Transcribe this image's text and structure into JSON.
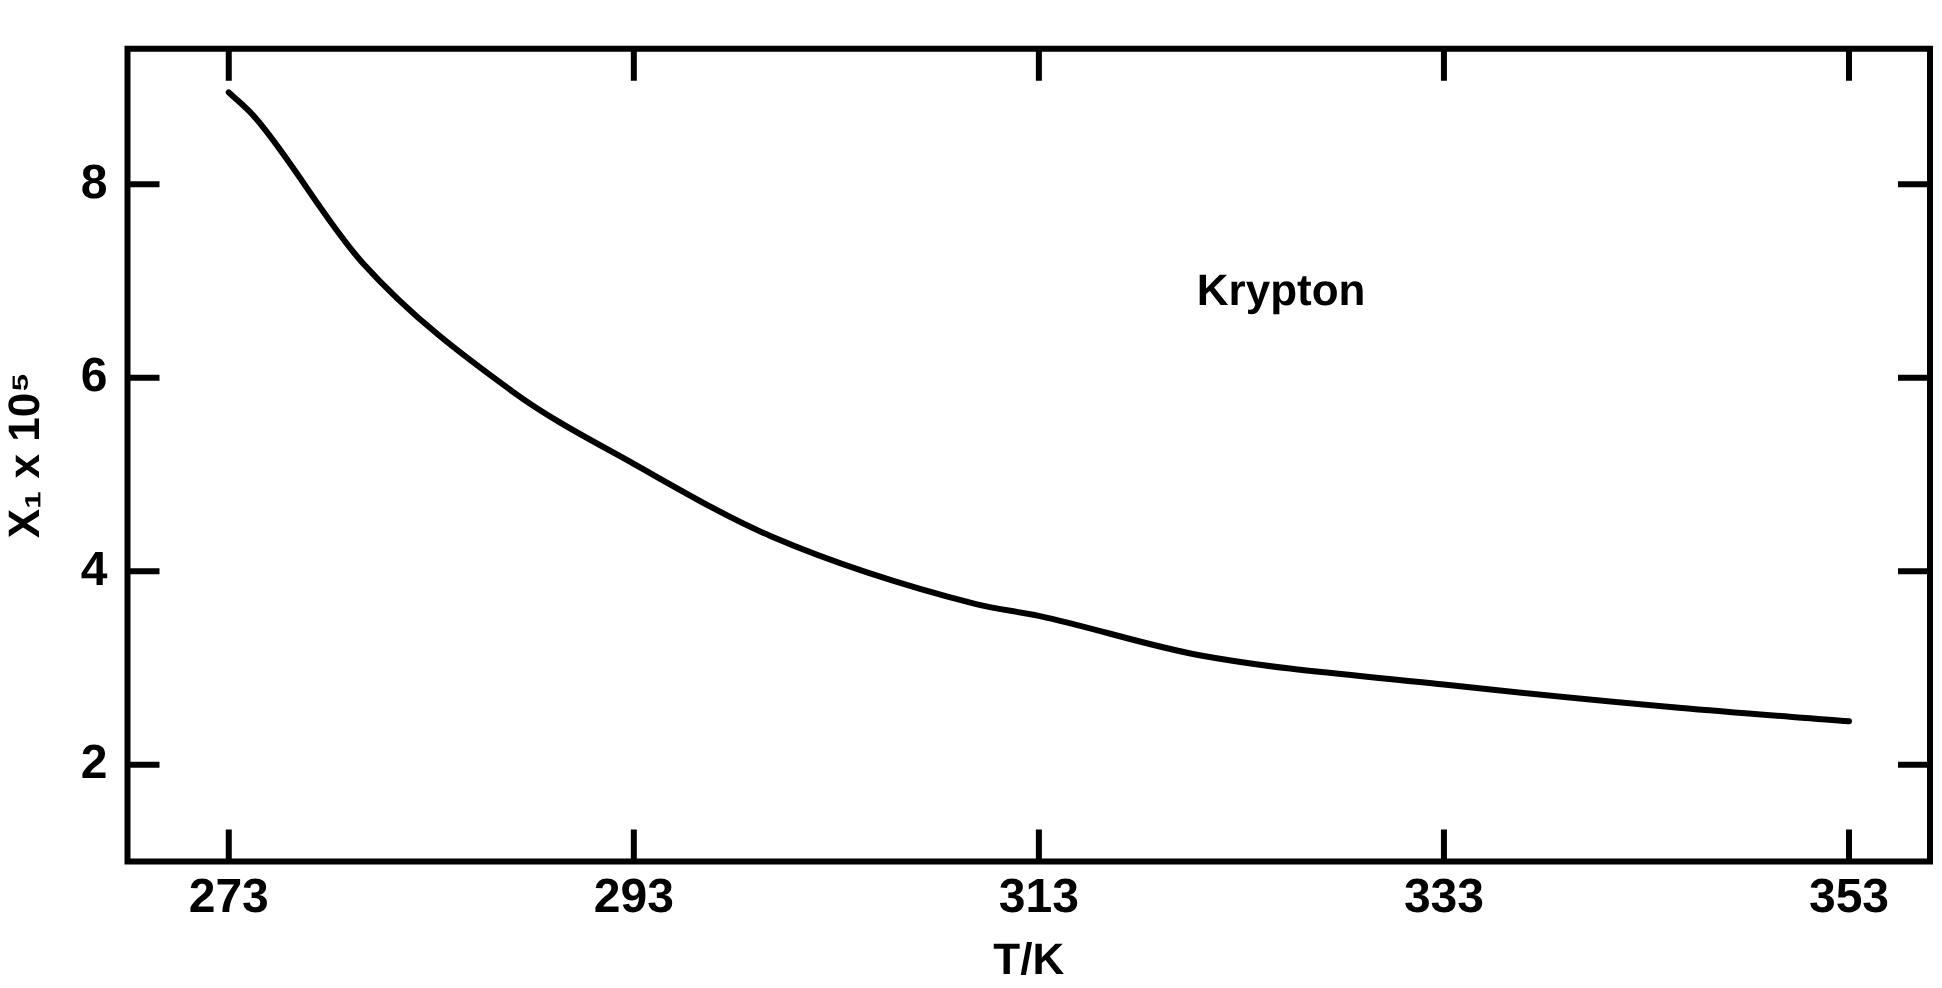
{
  "chart_data": {
    "type": "line",
    "xlabel": "T/K",
    "ylabel": "X₁ x 10⁵",
    "series": [
      {
        "name": "Krypton",
        "color": "#000000",
        "x": [
          273,
          274.3,
          279.6,
          287,
          293,
          299.8,
          309.9,
          313,
          321,
          333,
          344.6,
          353
        ],
        "values": [
          8.95,
          8.69,
          7.19,
          5.86,
          5.11,
          4.36,
          3.66,
          3.54,
          3.13,
          2.83,
          2.59,
          2.45
        ]
      }
    ],
    "xlim": [
      268,
      357
    ],
    "xticks": [
      273,
      293,
      313,
      333,
      353
    ],
    "ylim": [
      1,
      9.4
    ],
    "yticks": [
      2,
      4,
      6,
      8
    ],
    "grid": false,
    "legend": false,
    "marker": "none",
    "line_style": "solid"
  }
}
